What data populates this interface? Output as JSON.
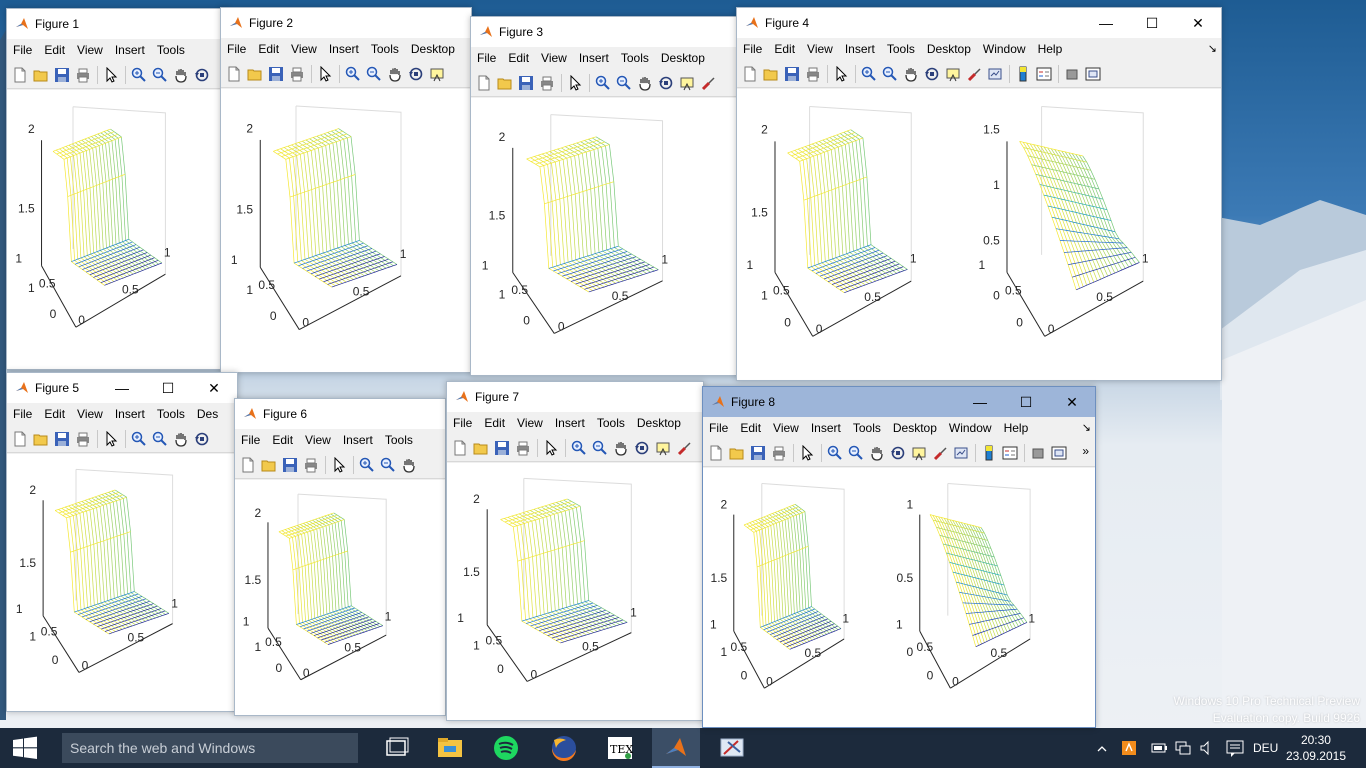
{
  "watermark": {
    "line1": "Windows 10 Pro Technical Preview",
    "line2": "Evaluation copy. Build 9926"
  },
  "colors": {
    "taskbar": "#1c2a3c",
    "active_title": "#9db5d9",
    "matlab_orange": "#e8711a",
    "mesh_yellow": "#f2e533",
    "mesh_blue": "#1f2a8c"
  },
  "figures": [
    {
      "title": "Figure 1",
      "menus": [
        "File",
        "Edit",
        "View",
        "Insert",
        "Tools"
      ],
      "show_controls": false,
      "more_menu": false
    },
    {
      "title": "Figure 2",
      "menus": [
        "File",
        "Edit",
        "View",
        "Insert",
        "Tools",
        "Desktop"
      ],
      "show_controls": false,
      "more_menu": false
    },
    {
      "title": "Figure 3",
      "menus": [
        "File",
        "Edit",
        "View",
        "Insert",
        "Tools",
        "Desktop"
      ],
      "show_controls": false,
      "more_menu": false
    },
    {
      "title": "Figure 4",
      "menus": [
        "File",
        "Edit",
        "View",
        "Insert",
        "Tools",
        "Desktop",
        "Window",
        "Help"
      ],
      "show_controls": true,
      "more_menu": true
    },
    {
      "title": "Figure 5",
      "menus": [
        "File",
        "Edit",
        "View",
        "Insert",
        "Tools",
        "Des"
      ],
      "show_controls": true,
      "more_menu": false
    },
    {
      "title": "Figure 6",
      "menus": [
        "File",
        "Edit",
        "View",
        "Insert",
        "Tools"
      ],
      "show_controls": false,
      "more_menu": false
    },
    {
      "title": "Figure 7",
      "menus": [
        "File",
        "Edit",
        "View",
        "Insert",
        "Tools",
        "Desktop"
      ],
      "show_controls": false,
      "more_menu": false
    },
    {
      "title": "Figure 8",
      "menus": [
        "File",
        "Edit",
        "View",
        "Insert",
        "Tools",
        "Desktop",
        "Window",
        "Help"
      ],
      "show_controls": true,
      "more_menu": true,
      "active": true
    }
  ],
  "window_controls": {
    "minimize": "—",
    "maximize": "☐",
    "close": "✕"
  },
  "toolbar_icons": [
    "new-file-icon",
    "open-folder-icon",
    "save-icon",
    "print-icon",
    "pointer-icon",
    "zoom-in-icon",
    "zoom-out-icon",
    "pan-hand-icon",
    "rotate-3d-icon",
    "data-cursor-icon",
    "brush-icon",
    "link-plot-icon",
    "colorbar-icon",
    "legend-icon",
    "hide-plot-tools-icon",
    "show-plot-tools-icon"
  ],
  "plots": {
    "left_z_ticks": [
      "1",
      "1.5",
      "2"
    ],
    "right_z_ticks": [
      "0",
      "0.5",
      "1",
      "1.5"
    ],
    "right_z_ticks_fig8": [
      "0",
      "0.5",
      "1"
    ],
    "y_ticks": [
      "0",
      "0.5",
      "1"
    ],
    "x_ticks": [
      "0",
      "0.5",
      "1"
    ]
  },
  "taskbar": {
    "search_placeholder": "Search the web and Windows",
    "language": "DEU",
    "time": "20:30",
    "date": "23.09.2015",
    "apps": [
      "task-view",
      "file-explorer",
      "spotify",
      "firefox",
      "texmaker",
      "matlab",
      "snipping-tool"
    ]
  }
}
